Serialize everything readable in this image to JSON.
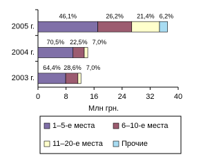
{
  "chart_data": {
    "type": "stacked-bar-horizontal",
    "categories": [
      "2005 г.",
      "2004 г.",
      "2003 г."
    ],
    "series": [
      {
        "name": "1–5-е места",
        "color": "#8070a8",
        "values": [
          17.06,
          10.0,
          7.9
        ],
        "percent_labels": [
          "46,1%",
          "70,5%",
          "64,4%"
        ]
      },
      {
        "name": "6–10-е места",
        "color": "#9c5c70",
        "values": [
          9.69,
          3.2,
          3.5
        ],
        "percent_labels": [
          "26,2%",
          "22,5%",
          "28,6%"
        ]
      },
      {
        "name": "11–20-е места",
        "color": "#ffffcc",
        "values": [
          7.92,
          1.0,
          0.86
        ],
        "percent_labels": [
          "21,4%",
          "7,0%",
          "7,0%"
        ]
      },
      {
        "name": "Прочие",
        "color": "#a8dcf2",
        "values": [
          2.29,
          null,
          null
        ],
        "percent_labels": [
          "6,2%",
          null,
          null
        ]
      }
    ],
    "x_label": "Млн грн.",
    "xlim": [
      0,
      40
    ],
    "xticks": [
      0,
      8,
      16,
      24,
      32,
      40
    ]
  }
}
